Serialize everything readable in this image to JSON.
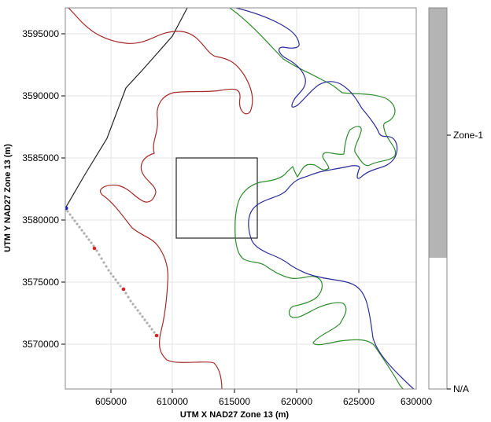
{
  "map": {
    "x_axis_title": "UTM X NAD27 Zone 13 (m)",
    "y_axis_title": "UTM Y NAD27 Zone 13 (m)",
    "x_ticks": [
      "605000",
      "610000",
      "615000",
      "620000",
      "625000",
      "630000"
    ],
    "y_ticks": [
      "3595000",
      "3590000",
      "3585000",
      "3580000",
      "3575000",
      "3570000"
    ]
  },
  "legend": {
    "zone_label": "Zone-1",
    "na_label": "N/A"
  },
  "colors": {
    "contour_red": "#a52a2a",
    "contour_green": "#2e8b2e",
    "contour_blue": "#2b2b9a",
    "boundary_black": "#222222",
    "well_gray": "#b0b0b0",
    "well_red": "#dd2222",
    "well_blue": "#1a1acc",
    "zone_fill": "#b4b4b4"
  }
}
